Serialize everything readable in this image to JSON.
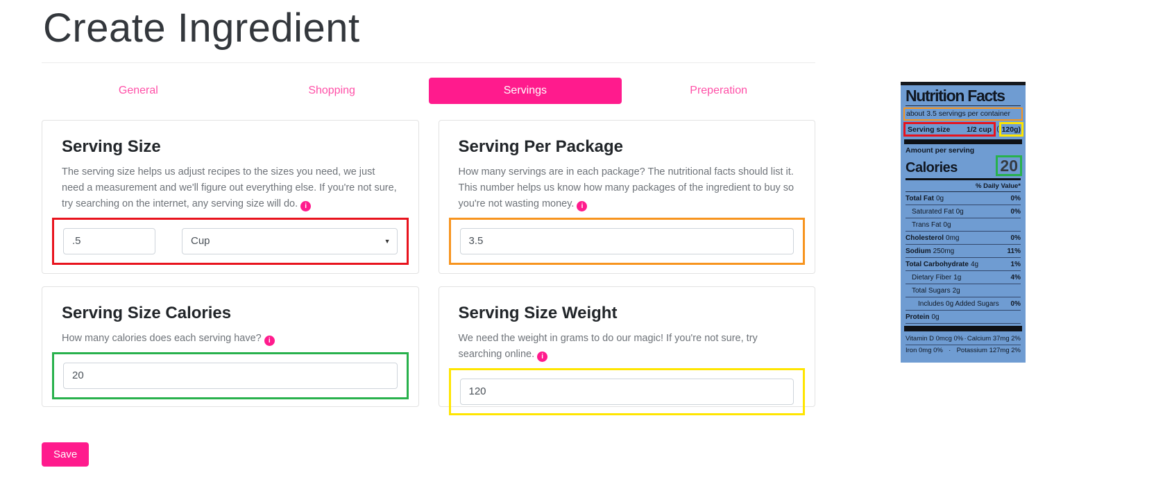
{
  "page": {
    "title": "Create Ingredient"
  },
  "tabs": [
    {
      "label": "General"
    },
    {
      "label": "Shopping"
    },
    {
      "label": "Servings"
    },
    {
      "label": "Preperation"
    }
  ],
  "icons": {
    "info_glyph": "i",
    "select_caret": "▼",
    "separator_dot": "·"
  },
  "colors": {
    "accent_pink": "#ff1b8d",
    "highlight_red": "#e8131d",
    "highlight_orange": "#f7941e",
    "highlight_green": "#28b14c",
    "highlight_yellow": "#ffe500",
    "nutrition_label_blue": "#6f9cd2"
  },
  "cards": {
    "serving_size": {
      "heading": "Serving Size",
      "description": "The serving size helps us adjust recipes to the sizes you need, we just need a measurement and we'll figure out everything else. If you're not sure, try searching on the internet, any serving size will do.",
      "amount_value": ".5",
      "unit_value": "Cup"
    },
    "serving_per_package": {
      "heading": "Serving Per Package",
      "description": "How many servings are in each package? The nutritional facts should list it. This number helps us know how many packages of the ingredient to buy so you're not wasting money.",
      "value": "3.5"
    },
    "serving_size_calories": {
      "heading": "Serving Size Calories",
      "description": "How many calories does each serving have?",
      "value": "20"
    },
    "serving_size_weight": {
      "heading": "Serving Size Weight",
      "description": "We need the weight in grams to do our magic! If you're not sure, try searching online.",
      "value": "120"
    }
  },
  "save": {
    "label": "Save"
  },
  "nutrition": {
    "title": "Nutrition Facts",
    "servings_per_container": "about 3.5 servings per container",
    "serving_size_label": "Serving size",
    "serving_size_value": "1/2 cup",
    "weight_prefix": "(",
    "weight_value": "120g)",
    "amount_per_serving": "Amount per serving",
    "calories_label": "Calories",
    "calories_value": "20",
    "daily_value_header": "% Daily Value*",
    "rows": [
      {
        "name": "Total Fat",
        "amount": "0g",
        "pct": "0%"
      },
      {
        "name": "Saturated Fat",
        "amount": "0g",
        "pct": "0%"
      },
      {
        "name": "Trans Fat",
        "amount": "0g",
        "pct": ""
      },
      {
        "name": "Cholesterol",
        "amount": "0mg",
        "pct": "0%"
      },
      {
        "name": "Sodium",
        "amount": "250mg",
        "pct": "11%"
      },
      {
        "name": "Total Carbohydrate",
        "amount": "4g",
        "pct": "1%"
      },
      {
        "name": "Dietary Fiber",
        "amount": "1g",
        "pct": "4%"
      },
      {
        "name": "Total Sugars",
        "amount": "2g",
        "pct": ""
      },
      {
        "name": "Includes 0g Added Sugars",
        "amount": "",
        "pct": "0%"
      },
      {
        "name": "Protein",
        "amount": "0g",
        "pct": ""
      }
    ],
    "micronutrients": [
      {
        "left": "Vitamin D 0mcg 0%",
        "right": "Calcium 37mg 2%"
      },
      {
        "left": "Iron 0mg 0%",
        "right": "Potassium 127mg 2%"
      }
    ]
  }
}
